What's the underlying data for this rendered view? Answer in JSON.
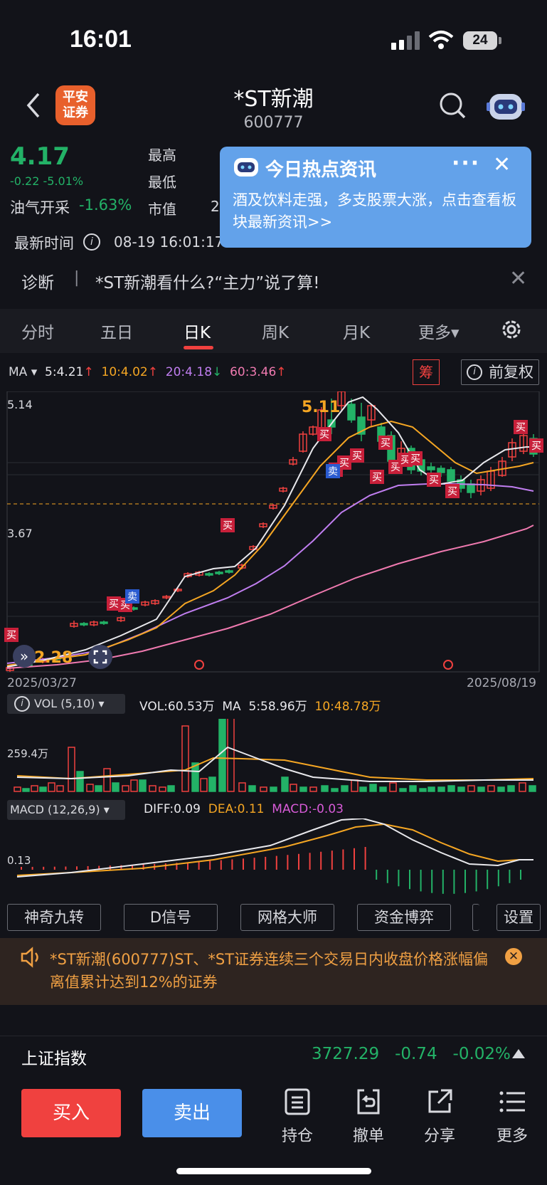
{
  "status": {
    "time": "16:01",
    "battery": "24"
  },
  "nav": {
    "broker_logo_line1": "平安",
    "broker_logo_line2": "证券",
    "stock_name": "*ST新潮",
    "stock_code": "600777"
  },
  "quote": {
    "price": "4.17",
    "change": "-0.22",
    "change_pct": "-5.01%",
    "sector_name": "油气开采",
    "sector_change": "-1.63%",
    "high_label": "最高",
    "low_label": "最低",
    "mktcap_label": "市值",
    "mktcap_partial": "2",
    "latest_time_label": "最新时间",
    "latest_time": "08-19 16:01:17"
  },
  "hot_popup": {
    "title": "今日热点资讯",
    "body": "酒及饮料走强，多支股票大涨，点击查看板块最新资讯>>",
    "more": "···",
    "close": "✕"
  },
  "diagnosis": {
    "label": "诊断",
    "separator": "|",
    "text": "*ST新潮看什么?“主力”说了算!",
    "close": "✕"
  },
  "tabs": [
    {
      "label": "分时"
    },
    {
      "label": "五日"
    },
    {
      "label": "日K",
      "active": true
    },
    {
      "label": "周K"
    },
    {
      "label": "月K"
    },
    {
      "label": "更多▾"
    }
  ],
  "ma": {
    "label": "MA ▾",
    "ma5": "5:4.21",
    "ma10": "10:4.02",
    "ma20": "20:4.18",
    "ma60": "60:3.46",
    "chou": "筹",
    "fuquan": "前复权"
  },
  "colors": {
    "up": "#f0413f",
    "down": "#23b267",
    "ma5": "#e8e8ec",
    "ma10": "#f5a623",
    "ma20": "#c07ef0",
    "ma60": "#f07ab0",
    "popup": "#63a2ea"
  },
  "kline": {
    "axis_high": "5.14",
    "axis_mid": "3.67",
    "max_marker": "5.11",
    "min_marker": "2.28",
    "start_date": "2025/03/27",
    "end_date": "2025/08/19",
    "buy_tag": "买",
    "sell_tag": "卖"
  },
  "volume": {
    "header": "VOL (5,10) ▾",
    "vol": "VOL:60.53万",
    "ma_label": "MA",
    "ma5": "5:58.96万",
    "ma10": "10:48.78万",
    "axis": "259.4万"
  },
  "macd": {
    "header": "MACD (12,26,9) ▾",
    "diff": "DIFF:0.09",
    "dea": "DEA:0.11",
    "macd": "MACD:-0.03",
    "axis": "0.13"
  },
  "tools": [
    "神奇九转",
    "D信号",
    "网格大师",
    "资金博弈",
    "设置"
  ],
  "notice": {
    "text": "*ST新潮(600777)ST、*ST证券连续三个交易日内收盘价格涨幅偏离值累计达到12%的证券",
    "close": "✕"
  },
  "index": {
    "name": "上证指数",
    "value": "3727.29",
    "change": "-0.74",
    "change_pct": "-0.02%"
  },
  "bottom": {
    "buy": "买入",
    "sell": "卖出",
    "hold": "持仓",
    "cancel": "撤单",
    "share": "分享",
    "more": "更多"
  }
}
